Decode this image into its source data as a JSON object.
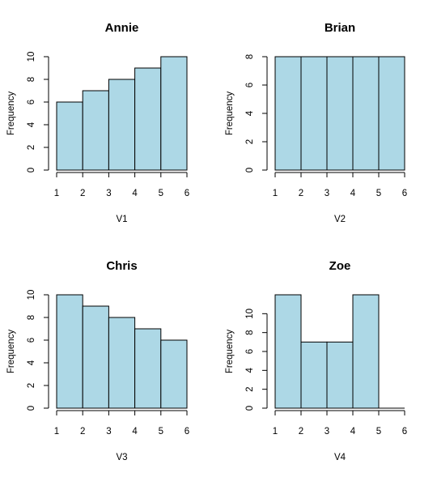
{
  "chart_data": [
    {
      "type": "bar",
      "title": "Annie",
      "xlabel": "V1",
      "ylabel": "Frequency",
      "bins": [
        [
          1,
          2
        ],
        [
          2,
          3
        ],
        [
          3,
          4
        ],
        [
          4,
          5
        ],
        [
          5,
          6
        ]
      ],
      "values": [
        6,
        7,
        8,
        9,
        10
      ],
      "xticks": [
        1,
        2,
        3,
        4,
        5,
        6
      ],
      "yticks": [
        0,
        2,
        4,
        6,
        8,
        10
      ],
      "xlim": [
        1,
        6
      ],
      "ylim": [
        0,
        10
      ],
      "bar_color": "#add8e6"
    },
    {
      "type": "bar",
      "title": "Brian",
      "xlabel": "V2",
      "ylabel": "Frequency",
      "bins": [
        [
          1,
          2
        ],
        [
          2,
          3
        ],
        [
          3,
          4
        ],
        [
          4,
          5
        ],
        [
          5,
          6
        ]
      ],
      "values": [
        8,
        8,
        8,
        8,
        8
      ],
      "xticks": [
        1,
        2,
        3,
        4,
        5,
        6
      ],
      "yticks": [
        0,
        2,
        4,
        6,
        8
      ],
      "xlim": [
        1,
        6
      ],
      "ylim": [
        0,
        8
      ],
      "bar_color": "#add8e6"
    },
    {
      "type": "bar",
      "title": "Chris",
      "xlabel": "V3",
      "ylabel": "Frequency",
      "bins": [
        [
          1,
          2
        ],
        [
          2,
          3
        ],
        [
          3,
          4
        ],
        [
          4,
          5
        ],
        [
          5,
          6
        ]
      ],
      "values": [
        10,
        9,
        8,
        7,
        6
      ],
      "xticks": [
        1,
        2,
        3,
        4,
        5,
        6
      ],
      "yticks": [
        0,
        2,
        4,
        6,
        8,
        10
      ],
      "xlim": [
        1,
        6
      ],
      "ylim": [
        0,
        10
      ],
      "bar_color": "#add8e6"
    },
    {
      "type": "bar",
      "title": "Zoe",
      "xlabel": "V4",
      "ylabel": "Frequency",
      "bins": [
        [
          1,
          2
        ],
        [
          2,
          3
        ],
        [
          3,
          4
        ],
        [
          4,
          5
        ],
        [
          5,
          6
        ]
      ],
      "values": [
        12,
        7,
        7,
        12,
        0
      ],
      "xticks": [
        1,
        2,
        3,
        4,
        5,
        6
      ],
      "yticks": [
        0,
        2,
        4,
        6,
        8,
        10
      ],
      "xlim": [
        1,
        6
      ],
      "ylim": [
        0,
        12
      ],
      "bar_color": "#add8e6"
    }
  ]
}
